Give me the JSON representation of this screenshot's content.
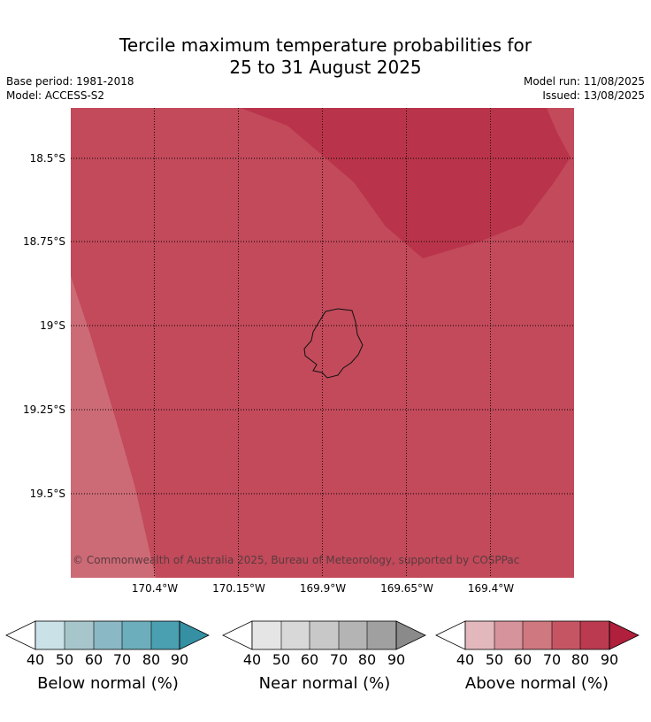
{
  "title": {
    "line1": "Tercile maximum temperature probabilities for",
    "line2": "25 to 31 August 2025"
  },
  "meta": {
    "base_period": "Base period: 1981-2018",
    "model": "Model: ACCESS-S2",
    "model_run": "Model run: 11/08/2025",
    "issued": "Issued: 13/08/2025"
  },
  "map": {
    "lat_labels": [
      "18.5°S",
      "18.75°S",
      "19°S",
      "19.25°S",
      "19.5°S"
    ],
    "lon_labels": [
      "170.4°W",
      "170.15°W",
      "169.9°W",
      "169.65°W",
      "169.4°W"
    ],
    "credit": "© Commonwealth of Australia 2025, Bureau of Meteorology, supported by COSPPac",
    "regions": [
      {
        "category": "above_normal",
        "probability_band": "70-80",
        "color": "#c24a5a"
      },
      {
        "category": "above_normal",
        "probability_band": "80-90",
        "color": "#b9344a"
      },
      {
        "category": "above_normal",
        "probability_band": "60-70",
        "color": "#cc6b76"
      }
    ]
  },
  "colorbars": [
    {
      "label": "Below normal (%)",
      "ticks": [
        "40",
        "50",
        "60",
        "70",
        "80",
        "90"
      ],
      "colors": [
        "#c9e1e7",
        "#a7c6cc",
        "#8ab8c4",
        "#6daebd",
        "#4a9fb1",
        "#3590a3"
      ],
      "low_color": "#ffffff"
    },
    {
      "label": "Near normal (%)",
      "ticks": [
        "40",
        "50",
        "60",
        "70",
        "80",
        "90"
      ],
      "colors": [
        "#e5e5e5",
        "#d8d8d8",
        "#c8c8c8",
        "#b4b4b4",
        "#a0a0a0",
        "#8a8a8a"
      ],
      "low_color": "#ffffff"
    },
    {
      "label": "Above normal (%)",
      "ticks": [
        "40",
        "50",
        "60",
        "70",
        "80",
        "90"
      ],
      "colors": [
        "#e3b8bd",
        "#d6939c",
        "#cf7880",
        "#c65564",
        "#bb3a4f",
        "#b01f3c"
      ],
      "low_color": "#ffffff"
    }
  ]
}
